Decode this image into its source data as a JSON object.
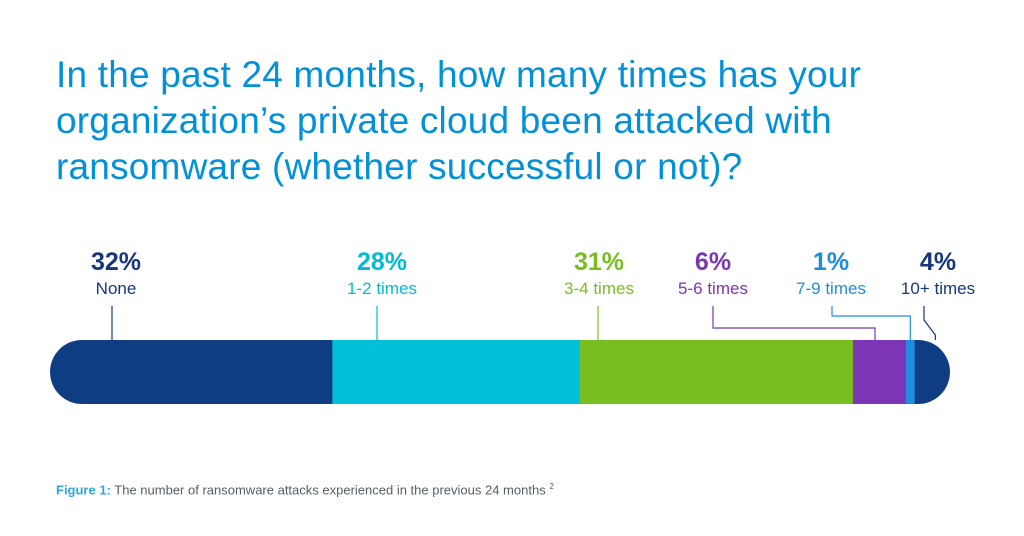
{
  "title_lines": [
    "In the past 24 months, how many times has your",
    "organization’s private cloud been attacked with",
    "ransomware (whether successful or not)?"
  ],
  "chart_data": {
    "type": "bar",
    "orientation": "horizontal-stacked",
    "unit": "%",
    "categories": [
      "None",
      "1-2 times",
      "3-4 times",
      "5-6 times",
      "7-9 times",
      "10+ times"
    ],
    "values": [
      32,
      28,
      31,
      6,
      1,
      4
    ],
    "value_labels": [
      "32%",
      "28%",
      "31%",
      "6%",
      "1%",
      "4%"
    ],
    "colors": [
      "#0E3D82",
      "#00BFD6",
      "#78BE20",
      "#7B35B5",
      "#1E8DE0",
      "#0E3D82"
    ],
    "label_colors": [
      "#16387A",
      "#00BCD4",
      "#78BE20",
      "#7B35B5",
      "#1E8DE0",
      "#16387A"
    ],
    "legend": "none",
    "grid": false
  },
  "caption": {
    "label": "Figure 1:",
    "text": "The number of ransomware attacks experienced in the previous 24 months",
    "superscript": "2"
  }
}
